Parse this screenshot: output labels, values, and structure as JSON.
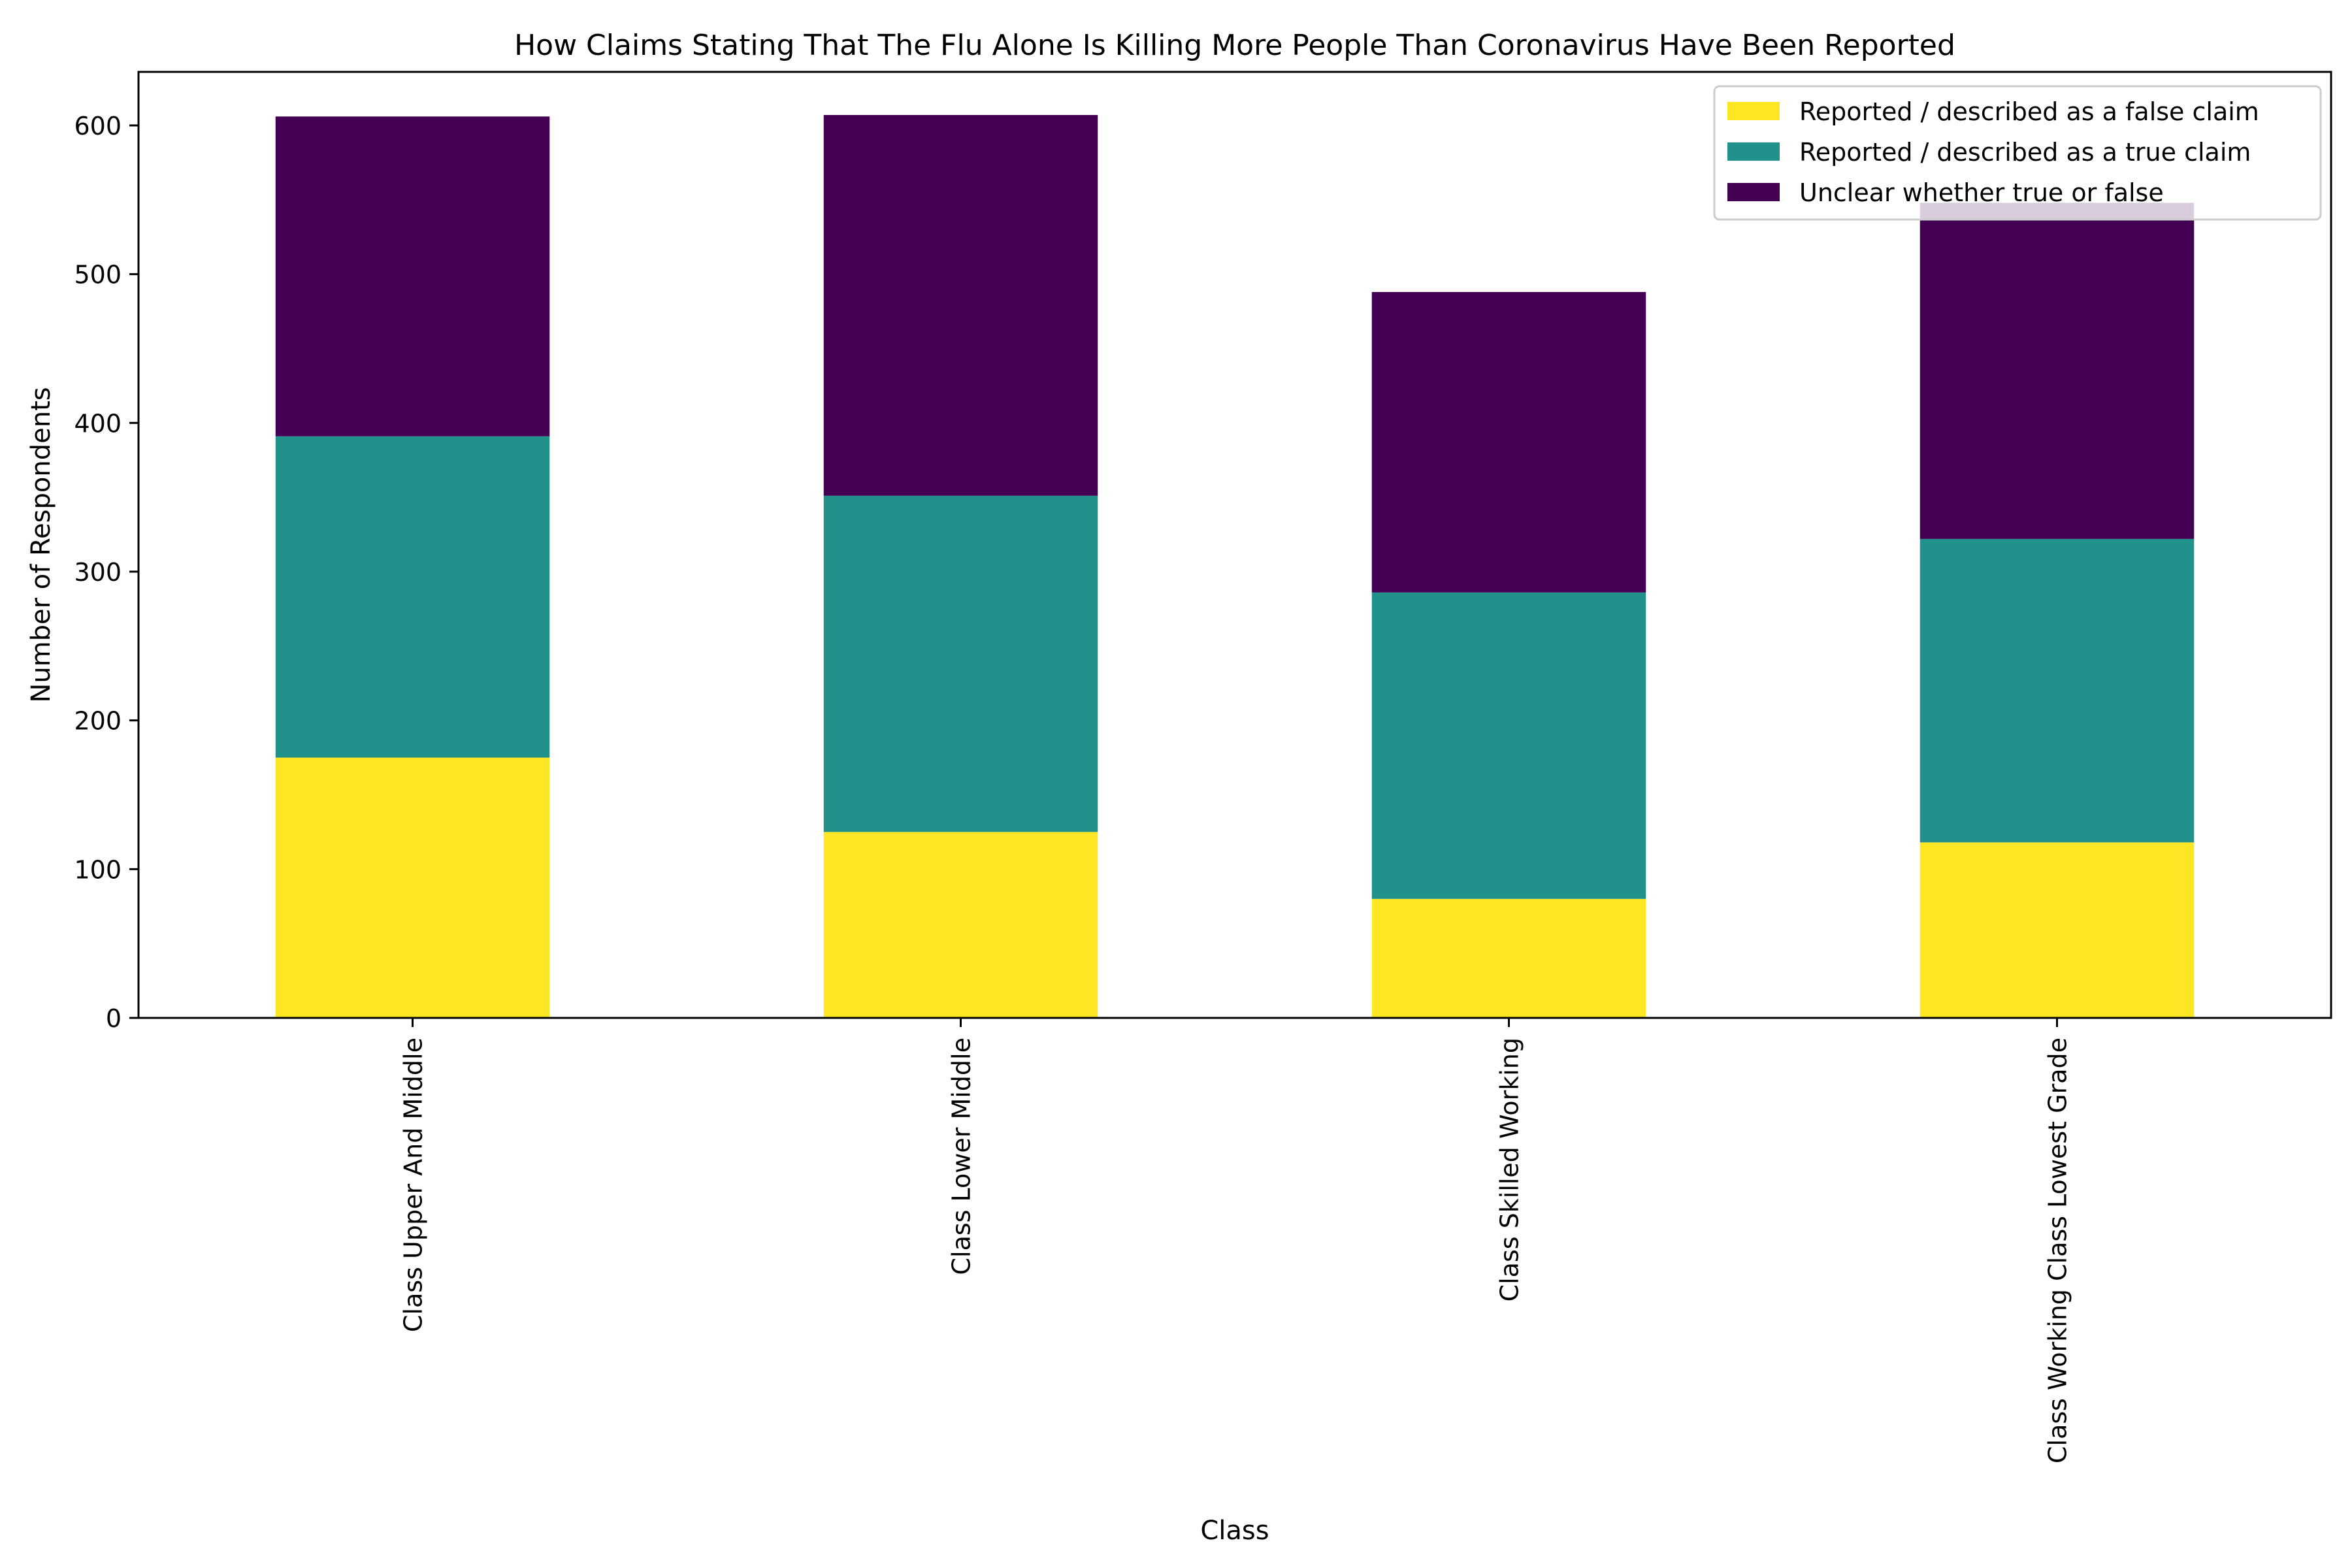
{
  "chart_data": {
    "type": "bar",
    "stacked": true,
    "title": "How Claims Stating That The Flu Alone Is Killing More People Than Coronavirus Have Been Reported",
    "xlabel": "Class",
    "ylabel": "Number of Respondents",
    "ylim": [
      0,
      636
    ],
    "yticks": [
      0,
      100,
      200,
      300,
      400,
      500,
      600
    ],
    "grid": false,
    "legend_position": "top-right",
    "categories": [
      "Class Upper And Middle",
      "Class Lower Middle",
      "Class Skilled Working",
      "Class Working Class Lowest Grade"
    ],
    "series": [
      {
        "name": "Reported / described as a false claim",
        "color": "#fde725",
        "values": [
          175,
          125,
          80,
          118
        ]
      },
      {
        "name": "Reported / described as a true claim",
        "color": "#21918c",
        "values": [
          216,
          226,
          206,
          204
        ]
      },
      {
        "name": "Unclear whether true or false",
        "color": "#440154",
        "values": [
          215,
          256,
          202,
          226
        ]
      }
    ]
  }
}
